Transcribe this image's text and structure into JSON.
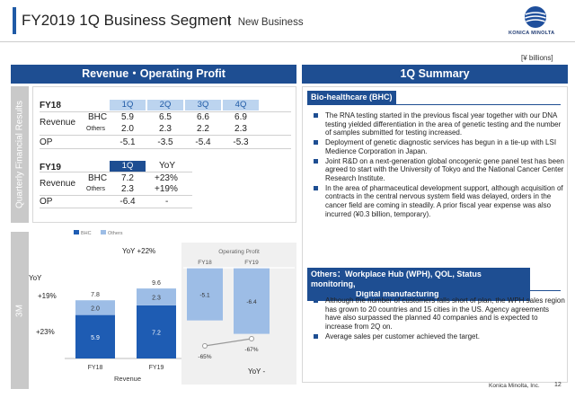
{
  "header": {
    "title": "FY2019 1Q Business Segment",
    "subtitle": "New Business",
    "logo_text": "KONICA MINOLTA",
    "accent": "#1f5aa6"
  },
  "units": "[¥ billions]",
  "left_panel": {
    "title": "Revenue・Operating Profit",
    "side_quarterly": "Quarterly Financial Results",
    "side_3m": "3M"
  },
  "fy18_table": {
    "year": "FY18",
    "quarters": [
      "1Q",
      "2Q",
      "3Q",
      "4Q"
    ],
    "revenue_label": "Revenue",
    "bhc_label": "BHC",
    "others_label": "Others",
    "op_label": "OP",
    "bhc": [
      "5.9",
      "6.5",
      "6.6",
      "6.9"
    ],
    "others": [
      "2.0",
      "2.3",
      "2.2",
      "2.3"
    ],
    "op": [
      "-5.1",
      "-3.5",
      "-5.4",
      "-5.3"
    ]
  },
  "fy19_table": {
    "year": "FY19",
    "quarter": "1Q",
    "yoy_header": "YoY",
    "revenue_label": "Revenue",
    "bhc_label": "BHC",
    "others_label": "Others",
    "op_label": "OP",
    "bhc": "7.2",
    "bhc_yoy": "+23%",
    "others": "2.3",
    "others_yoy": "+19%",
    "op": "-6.4",
    "op_yoy": "-"
  },
  "chart_data": [
    {
      "type": "bar",
      "stacked": true,
      "title": "",
      "xlabel": "Revenue",
      "ylabel": "",
      "categories": [
        "FY18",
        "FY19"
      ],
      "series": [
        {
          "name": "BHC",
          "values": [
            5.9,
            7.2
          ],
          "color": "#1e5cb3"
        },
        {
          "name": "Others",
          "values": [
            2.0,
            2.3
          ],
          "color": "#9dbde6"
        }
      ],
      "totals": [
        7.8,
        9.6
      ],
      "legend": "top",
      "annotations": {
        "total_yoy": "YoY +22%",
        "yoy_label": "YoY",
        "others_yoy": "+19%",
        "bhc_yoy": "+23%"
      }
    },
    {
      "type": "bar",
      "title": "Operating Profit",
      "xlabel": "",
      "ylabel": "",
      "categories": [
        "FY18",
        "FY19"
      ],
      "values": [
        -5.1,
        -6.4
      ],
      "color": "#9dbde6",
      "line": {
        "name": "margin",
        "values_label": [
          "-65%",
          "-67%"
        ],
        "values": [
          -65,
          -67
        ]
      },
      "annotations": {
        "yoy": "YoY -"
      }
    }
  ],
  "summary": {
    "title": "1Q Summary",
    "bhc_section": {
      "tag": "Bio-healthcare (BHC)",
      "bullets": [
        "The RNA testing started in the previous fiscal year together with our DNA testing yielded differentiation in the area of genetic testing and the number of samples submitted for testing increased.",
        "Deployment of genetic diagnostic services has begun in a tie-up with LSI Medience Corporation in Japan.",
        "Joint R&D on a next-generation global oncogenic gene panel test has been agreed to start with the University of Tokyo and the National Cancer Center Research Institute.",
        "In the area of pharmaceutical development support, although acquisition of contracts in the central nervous system field was delayed, orders in the cancer field are coming in steadily. A prior fiscal year expense was also incurred (¥0.3 billion, temporary)."
      ]
    },
    "others_section": {
      "tag_line1": "Others：Workplace Hub (WPH), QOL, Status monitoring,",
      "tag_line2": "Digital manufacturing",
      "bullets": [
        "Although the number of customers falls short of plan, the WPH sales region has grown to 20 countries and 15 cities in the US. Agency agreements have also surpassed the planned 40 companies and is expected to increase from 2Q on.",
        "Average sales per customer achieved the target."
      ]
    }
  },
  "footer": {
    "company": "Konica Minolta, Inc.",
    "page": "12"
  }
}
